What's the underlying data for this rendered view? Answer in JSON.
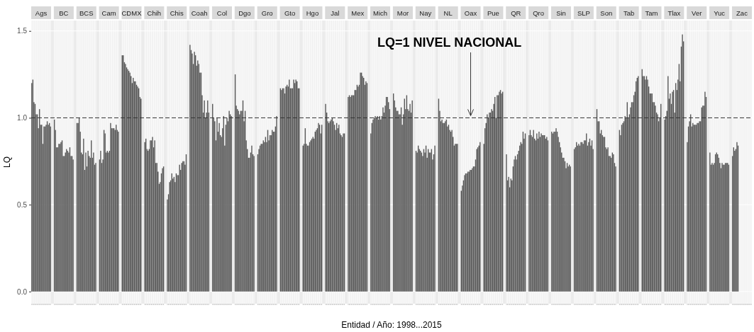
{
  "chart_data": {
    "type": "bar",
    "ylabel": "LQ",
    "xlabel": "Entidad / Año: 1998...2015",
    "categories": [
      "Ags",
      "BC",
      "BCS",
      "Cam",
      "CDMX",
      "Chih",
      "Chis",
      "Coah",
      "Col",
      "Dgo",
      "Gro",
      "Gto",
      "Hgo",
      "Jal",
      "Mex",
      "Mich",
      "Mor",
      "Nay",
      "NL",
      "Oax",
      "Pue",
      "QR",
      "Qro",
      "Sin",
      "SLP",
      "Son",
      "Tab",
      "Tam",
      "Tlax",
      "Ver",
      "Yuc",
      "Zac"
    ],
    "series": [
      {
        "color": "#595959",
        "values": [
          1.2,
          0.99,
          0.97,
          0.76,
          1.36,
          0.86,
          0.53,
          1.42,
          1.08,
          1.25,
          0.79,
          1.17,
          0.84,
          1.08,
          1.12,
          0.91,
          1.14,
          0.81,
          1.11,
          0.58,
          0.85,
          0.79,
          0.9,
          0.92,
          0.82,
          1.05,
          0.93,
          1.28,
          0.99,
          0.86,
          0.8,
          0.78
        ]
      },
      {
        "color": "#595959",
        "values": [
          1.22,
          0.93,
          0.97,
          0.81,
          1.36,
          0.88,
          0.56,
          1.39,
          1.0,
          1.07,
          0.82,
          1.16,
          0.85,
          1.03,
          1.13,
          0.97,
          1.1,
          0.8,
          1.04,
          0.61,
          0.94,
          0.64,
          0.93,
          0.91,
          0.83,
          0.98,
          0.9,
          1.24,
          1.01,
          0.95,
          0.73,
          0.83
        ]
      },
      {
        "color": "#595959",
        "values": [
          1.09,
          0.83,
          1.0,
          0.74,
          1.32,
          0.82,
          0.63,
          1.37,
          0.98,
          1.05,
          0.84,
          1.17,
          0.94,
          0.98,
          1.12,
          0.99,
          1.06,
          0.84,
          0.98,
          0.64,
          0.97,
          0.66,
          0.9,
          0.92,
          0.86,
          0.98,
          0.96,
          1.24,
          1.04,
          0.98,
          0.74,
          0.81
        ]
      },
      {
        "color": "#595959",
        "values": [
          1.08,
          0.83,
          0.92,
          0.76,
          1.31,
          0.81,
          0.64,
          1.31,
          0.87,
          1.04,
          0.85,
          1.17,
          0.85,
          0.97,
          1.13,
          1.0,
          1.04,
          0.82,
          0.99,
          0.67,
          1.02,
          0.6,
          0.89,
          0.92,
          0.84,
          0.91,
          0.97,
          1.22,
          1.24,
          1.02,
          0.73,
          0.82
        ]
      },
      {
        "color": "#595959",
        "values": [
          1.02,
          0.85,
          0.8,
          0.93,
          1.29,
          0.82,
          0.68,
          1.38,
          1.0,
          1.02,
          0.85,
          1.14,
          0.84,
          0.98,
          1.13,
          1.01,
          1.04,
          0.81,
          0.97,
          0.68,
          1.0,
          0.65,
          0.93,
          0.94,
          0.85,
          0.93,
          0.98,
          1.24,
          1.11,
          0.95,
          0.74,
          0.86
        ]
      },
      {
        "color": "#595959",
        "values": [
          1.02,
          0.85,
          0.79,
          0.91,
          1.28,
          0.87,
          0.65,
          1.36,
          0.92,
          1.04,
          0.87,
          1.18,
          0.84,
          0.99,
          1.13,
          1.0,
          1.02,
          0.8,
          0.97,
          0.68,
          1.03,
          0.64,
          0.88,
          0.92,
          0.84,
          0.9,
          1.01,
          1.22,
          1.14,
          0.97,
          0.79,
          0.84
        ]
      },
      {
        "color": "#595959",
        "values": [
          0.94,
          0.86,
          0.88,
          0.8,
          1.27,
          0.87,
          0.66,
          1.3,
          0.97,
          1.04,
          0.86,
          1.19,
          0.86,
          1.0,
          1.16,
          1.01,
          1.02,
          0.78,
          0.98,
          0.69,
          1.03,
          0.72,
          0.87,
          0.89,
          0.86,
          0.89,
          1.0,
          1.18,
          1.08,
          0.96,
          0.8,
          null
        ]
      },
      {
        "color": "#595959",
        "values": [
          1.05,
          0.87,
          0.7,
          0.81,
          1.26,
          0.89,
          0.63,
          1.33,
          0.9,
          1.1,
          0.89,
          1.18,
          0.87,
          0.98,
          1.16,
          0.99,
          1.06,
          0.82,
          0.99,
          0.69,
          1.05,
          0.76,
          0.91,
          0.86,
          0.86,
          0.89,
          1.09,
          1.14,
          1.15,
          0.96,
          0.79,
          null
        ]
      },
      {
        "color": "#595959",
        "values": [
          0.96,
          0.78,
          0.8,
          0.8,
          1.24,
          0.83,
          0.68,
          1.31,
          0.89,
          0.98,
          0.86,
          1.22,
          0.88,
          0.96,
          1.19,
          1.01,
          0.96,
          0.8,
          0.95,
          0.7,
          1.04,
          0.78,
          0.88,
          0.83,
          0.85,
          0.83,
          1.0,
          1.14,
          1.16,
          0.96,
          0.77,
          null
        ]
      },
      {
        "color": "#595959",
        "values": [
          0.96,
          0.78,
          0.72,
          0.81,
          1.2,
          0.87,
          0.67,
          1.26,
          0.94,
          1.04,
          0.93,
          1.17,
          0.89,
          0.93,
          1.18,
          0.99,
          1.02,
          0.84,
          0.96,
          0.7,
          1.08,
          0.76,
          0.92,
          0.8,
          0.87,
          0.82,
          1.02,
          1.14,
          1.03,
          0.97,
          0.74,
          null
        ]
      },
      {
        "color": "#595959",
        "values": [
          0.85,
          0.8,
          0.81,
          0.97,
          1.23,
          0.74,
          0.67,
          1.26,
          1.01,
          0.87,
          0.87,
          1.17,
          0.88,
          0.97,
          1.19,
          1.01,
          1.11,
          0.77,
          0.93,
          0.71,
          1.12,
          0.79,
          0.89,
          0.77,
          0.87,
          0.83,
          1.06,
          1.09,
          1.2,
          0.97,
          0.71,
          null
        ]
      },
      {
        "color": "#595959",
        "values": [
          0.95,
          0.82,
          0.78,
          0.94,
          1.21,
          0.74,
          0.73,
          1.13,
          0.84,
          0.82,
          0.9,
          1.17,
          0.92,
          0.94,
          1.26,
          1.06,
          1.05,
          0.82,
          0.92,
          0.72,
          1.0,
          0.81,
          0.91,
          0.77,
          0.91,
          0.78,
          1.09,
          1.09,
          1.16,
          0.98,
          0.74,
          null
        ]
      },
      {
        "color": "#595959",
        "values": [
          0.95,
          0.81,
          0.77,
          0.94,
          1.21,
          0.69,
          0.7,
          1.03,
          0.96,
          0.77,
          0.9,
          1.22,
          0.93,
          0.96,
          1.26,
          1.03,
          1.13,
          0.8,
          0.93,
          0.72,
          1.13,
          0.84,
          0.9,
          0.75,
          0.84,
          0.78,
          1.09,
          1.07,
          1.22,
          0.98,
          0.73,
          null
        ]
      },
      {
        "color": "#595959",
        "values": [
          0.96,
          0.8,
          0.87,
          0.94,
          1.19,
          0.62,
          0.74,
          1.1,
          1.0,
          0.77,
          0.93,
          1.2,
          0.94,
          0.91,
          1.24,
          1.07,
          1.05,
          0.8,
          0.89,
          0.76,
          1.13,
          0.86,
          0.9,
          0.71,
          0.86,
          0.77,
          1.13,
          1.03,
          1.31,
          1.06,
          0.73,
          null
        ]
      },
      {
        "color": "#595959",
        "values": [
          0.98,
          0.83,
          0.77,
          0.93,
          1.18,
          0.63,
          0.75,
          1.0,
          0.98,
          0.8,
          0.92,
          1.22,
          0.97,
          0.9,
          1.23,
          1.12,
          1.04,
          0.82,
          0.84,
          0.82,
          1.15,
          0.85,
          0.9,
          0.74,
          0.88,
          0.8,
          1.15,
          1.02,
          1.21,
          1.07,
          0.74,
          null
        ]
      },
      {
        "color": "#595959",
        "values": [
          0.96,
          0.78,
          0.8,
          0.96,
          1.17,
          0.68,
          0.75,
          1.03,
          1.04,
          0.84,
          0.92,
          1.21,
          0.96,
          0.89,
          1.19,
          1.12,
          1.08,
          0.76,
          0.85,
          0.83,
          1.16,
          0.92,
          0.88,
          0.72,
          0.84,
          0.79,
          1.21,
          0.98,
          1.41,
          1.07,
          0.74,
          null
        ]
      },
      {
        "color": "#595959",
        "values": [
          0.97,
          0.78,
          0.73,
          0.93,
          1.12,
          0.71,
          0.73,
          1.1,
          1.02,
          0.79,
          0.95,
          1.17,
          0.91,
          0.91,
          1.21,
          1.09,
          1.03,
          0.79,
          0.85,
          0.84,
          1.14,
          0.88,
          0.89,
          0.73,
          0.87,
          0.74,
          1.23,
          1.0,
          1.48,
          1.15,
          0.74,
          null
        ]
      },
      {
        "color": "#595959",
        "values": [
          0.95,
          0.76,
          0.74,
          0.92,
          1.11,
          0.72,
          0.79,
          1.03,
          1.01,
          0.78,
          1.01,
          1.17,
          0.96,
          0.91,
          1.2,
          1.05,
          1.1,
          0.84,
          0.85,
          0.86,
          1.15,
          0.91,
          0.87,
          0.72,
          0.82,
          0.72,
          1.24,
          1.08,
          1.44,
          1.12,
          0.73,
          null
        ]
      }
    ],
    "ylim": [
      -0.07,
      1.56
    ],
    "yticks": [
      {
        "value": 0,
        "label": "0.0"
      },
      {
        "value": 0.5,
        "label": "0.5"
      },
      {
        "value": 1,
        "label": "1.0"
      },
      {
        "value": 1.5,
        "label": "1.5"
      }
    ],
    "grid": true,
    "ref_lines": [
      {
        "axis": "y",
        "value": 1,
        "line_style": "dashed",
        "color": "#333333"
      }
    ],
    "annotations": [
      {
        "text": "LQ=1 NIVEL NACIONAL",
        "x": "Oax",
        "y": 1
      }
    ]
  }
}
